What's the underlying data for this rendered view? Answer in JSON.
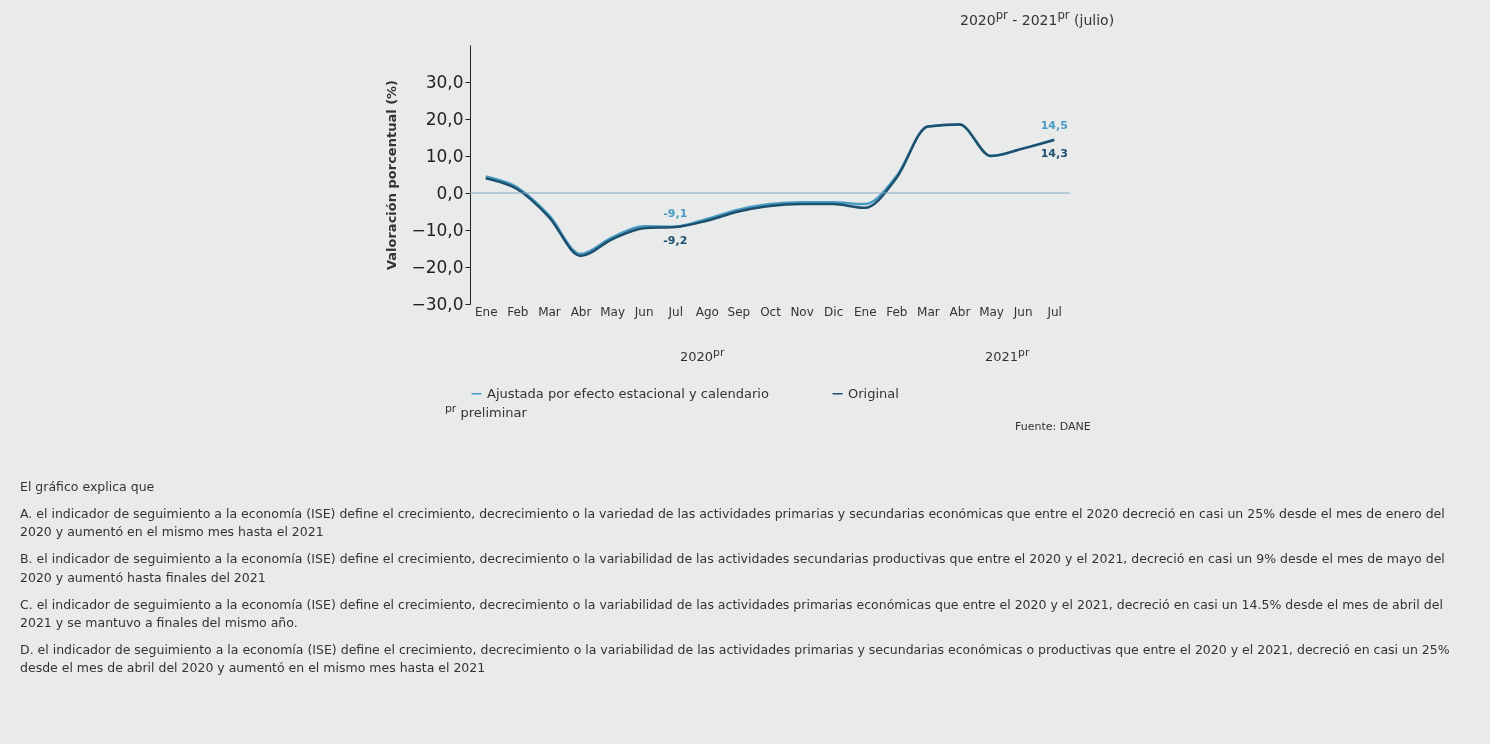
{
  "chart_data": {
    "type": "line",
    "title": "2020$^{pr}$ - 2021$^{pr}$ (julio)",
    "ylabel": "Valoración porcentual (%)",
    "categories": [
      "Ene",
      "Feb",
      "Mar",
      "Abr",
      "May",
      "Jun",
      "Jul",
      "Ago",
      "Sep",
      "Oct",
      "Nov",
      "Dic",
      "Ene",
      "Feb",
      "Mar",
      "Abr",
      "May",
      "Jun",
      "Jul"
    ],
    "series": [
      {
        "name": "Ajustada por efecto estacional y calendario",
        "color": "#4a9cc4",
        "values": [
          4.5,
          1.5,
          -6,
          -16.5,
          -12,
          -9,
          -9.1,
          -7,
          -4.5,
          -3,
          -2.5,
          -2.5,
          -3,
          4.5,
          18,
          18.5,
          10,
          12,
          14.5
        ],
        "value_labels": [
          null,
          null,
          null,
          null,
          null,
          null,
          "-9,1",
          null,
          null,
          null,
          null,
          null,
          null,
          null,
          null,
          null,
          null,
          null,
          "14,5"
        ]
      },
      {
        "name": "Original",
        "color": "#1d4f6e",
        "values": [
          4,
          1,
          -6.5,
          -17,
          -12.5,
          -9.5,
          -9.2,
          -7.5,
          -5,
          -3.5,
          -3,
          -3,
          -4,
          4,
          18,
          18.5,
          10,
          12,
          14.3
        ],
        "value_labels": [
          null,
          null,
          null,
          null,
          null,
          null,
          "-9,2",
          null,
          null,
          null,
          null,
          null,
          null,
          null,
          null,
          null,
          null,
          null,
          "14,3"
        ]
      }
    ],
    "ylim": [
      -30,
      40
    ],
    "yticks": [
      {
        "value": -30,
        "label": "−30,0"
      },
      {
        "value": -20,
        "label": "−20,0"
      },
      {
        "value": -10,
        "label": "−10,0"
      },
      {
        "value": 0,
        "label": "0,0"
      },
      {
        "value": 10,
        "label": "10,0"
      },
      {
        "value": 20,
        "label": "20,0"
      },
      {
        "value": 30,
        "label": "30,0"
      }
    ],
    "ref_lines": [
      {
        "axis": "y",
        "value": 0,
        "color": "#7fa8bf"
      }
    ],
    "grid": false,
    "legend": "bottom",
    "marker": "none",
    "line_style": "solid",
    "annotations": [
      "2020$^{pr}$",
      "2021$^{pr}$",
      "$^{pr}$ preliminar",
      "Fuente: DANE",
      "El gráfico explica que",
      "A. el indicador de seguimiento a la economía (ISE) define el crecimiento, decrecimiento o la variedad de las actividades primarias y secundarias económicas que entre el 2020 decreció en casi un 25% desde el mes de enero del 2020 y aumentó en el mismo mes hasta el 2021",
      "B. el indicador de seguimiento a la economía (ISE) define el crecimiento, decrecimiento o la variabilidad de las actividades secundarias productivas que entre el 2020 y el 2021, decreció en casi un 9% desde el mes de mayo del 2020 y aumentó hasta finales del 2021",
      "C. el indicador de seguimiento a la economía (ISE) define el crecimiento, decrecimiento o la variabilidad de las actividades primarias económicas que entre el 2020 y el 2021, decreció en casi un 14.5% desde el mes de abril del 2021 y se mantuvo a finales del mismo año.",
      "D. el indicador de seguimiento a la economía (ISE) define el crecimiento, decrecimiento o la variabilidad de las actividades primarias y secundarias económicas o productivas que entre el 2020 y el 2021, decreció en casi un 25% desde el mes de abril del 2020 y aumentó en el mismo mes hasta el 2021"
    ]
  }
}
